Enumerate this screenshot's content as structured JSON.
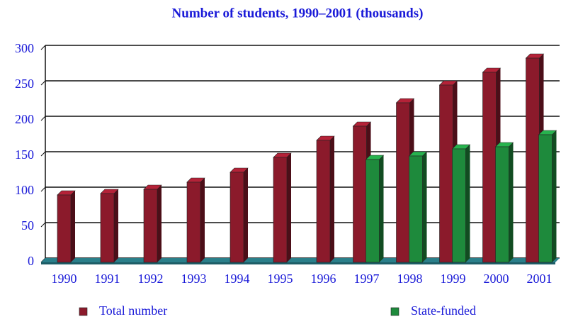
{
  "chart_data": {
    "type": "bar3d",
    "title": "Number of students, 1990–2001 (thousands)",
    "categories": [
      "1990",
      "1991",
      "1992",
      "1993",
      "1994",
      "1995",
      "1996",
      "1997",
      "1998",
      "1999",
      "2000",
      "2001"
    ],
    "series": [
      {
        "name": "Total number",
        "color": "#8b1a2b",
        "values": [
          95,
          97,
          103,
          113,
          127,
          148,
          172,
          192,
          225,
          250,
          268,
          288
        ]
      },
      {
        "name": "State-funded",
        "color": "#1e8a3c",
        "values": [
          null,
          null,
          null,
          null,
          null,
          null,
          null,
          145,
          150,
          160,
          163,
          180
        ]
      }
    ],
    "ylim": [
      0,
      300
    ],
    "yticks": [
      0,
      50,
      100,
      150,
      200,
      250,
      300
    ],
    "grid": true,
    "legend": "bottom"
  }
}
